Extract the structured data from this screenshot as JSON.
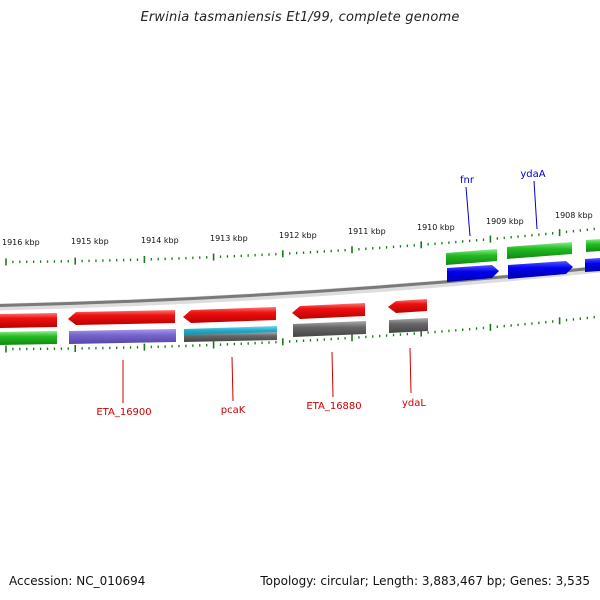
{
  "title": "Erwinia tasmaniensis Et1/99, complete genome",
  "footer": {
    "accession": "Accession: NC_010694",
    "topology": "Topology: circular; Length: 3,883,467 bp; Genes: 3,535"
  },
  "ruler_labels": [
    "1916 kbp",
    "1915 kbp",
    "1914 kbp",
    "1913 kbp",
    "1912 kbp",
    "1911 kbp",
    "1910 kbp",
    "1909 kbp",
    "1908 kbp"
  ],
  "gene_labels_top": [
    {
      "name": "fnr",
      "color": "#0000cc"
    },
    {
      "name": "ydaA",
      "color": "#0000cc"
    }
  ],
  "gene_labels_bottom": [
    {
      "name": "ETA_16900",
      "color": "#cc0000"
    },
    {
      "name": "pcaK",
      "color": "#cc0000"
    },
    {
      "name": "ETA_16880",
      "color": "#cc0000"
    },
    {
      "name": "ydaL",
      "color": "#cc0000"
    }
  ],
  "colors": {
    "backbone": "#8a8a8a",
    "tick": "#1a7a1a",
    "cds": "#ee1111",
    "gene": "#22bb22",
    "blue_feature": "#0000ee",
    "purple_feature": "#7766cc",
    "cyan_feature": "#22aacc",
    "grey_feature": "#666666"
  }
}
